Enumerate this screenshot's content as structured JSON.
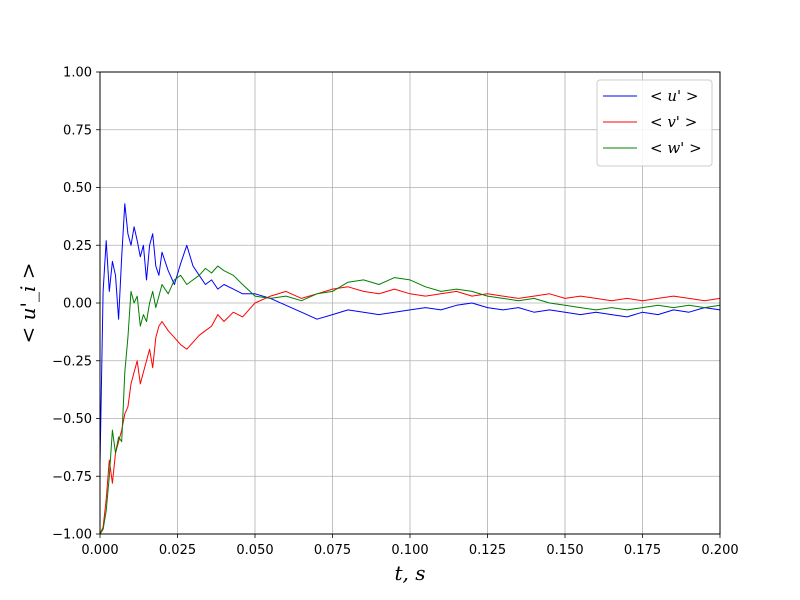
{
  "chart_data": {
    "type": "line",
    "xlabel": "t, s",
    "ylabel": "< u'_i >",
    "xlim": [
      0,
      0.2
    ],
    "ylim": [
      -1.0,
      1.0
    ],
    "grid": true,
    "legend_position": "top-right",
    "x_ticks": [
      0.0,
      0.025,
      0.05,
      0.075,
      0.1,
      0.125,
      0.15,
      0.175,
      0.2
    ],
    "x_tick_labels": [
      "0.000",
      "0.025",
      "0.050",
      "0.075",
      "0.100",
      "0.125",
      "0.150",
      "0.175",
      "0.200"
    ],
    "y_ticks": [
      1.0,
      0.75,
      0.5,
      0.25,
      0.0,
      -0.25,
      -0.5,
      -0.75,
      -1.0
    ],
    "y_tick_labels": [
      "1.00",
      "0.75",
      "0.50",
      "0.25",
      "0.00",
      "−0.25",
      "−0.50",
      "−0.75",
      "−1.00"
    ],
    "series": [
      {
        "name": "< u' >",
        "color": "#0000ff",
        "x": [
          0.0,
          0.001,
          0.002,
          0.003,
          0.004,
          0.005,
          0.006,
          0.007,
          0.008,
          0.009,
          0.01,
          0.011,
          0.012,
          0.013,
          0.014,
          0.015,
          0.016,
          0.017,
          0.018,
          0.019,
          0.02,
          0.022,
          0.024,
          0.026,
          0.028,
          0.03,
          0.032,
          0.034,
          0.036,
          0.038,
          0.04,
          0.043,
          0.046,
          0.05,
          0.055,
          0.06,
          0.065,
          0.07,
          0.075,
          0.08,
          0.085,
          0.09,
          0.095,
          0.1,
          0.105,
          0.11,
          0.115,
          0.12,
          0.125,
          0.13,
          0.135,
          0.14,
          0.145,
          0.15,
          0.155,
          0.16,
          0.165,
          0.17,
          0.175,
          0.18,
          0.185,
          0.19,
          0.195,
          0.2
        ],
        "y": [
          -0.7,
          0.05,
          0.27,
          0.05,
          0.18,
          0.12,
          -0.07,
          0.2,
          0.43,
          0.3,
          0.25,
          0.33,
          0.27,
          0.2,
          0.25,
          0.1,
          0.25,
          0.3,
          0.16,
          0.12,
          0.22,
          0.14,
          0.08,
          0.17,
          0.25,
          0.16,
          0.12,
          0.08,
          0.1,
          0.06,
          0.08,
          0.06,
          0.04,
          0.04,
          0.02,
          -0.01,
          -0.04,
          -0.07,
          -0.05,
          -0.03,
          -0.04,
          -0.05,
          -0.04,
          -0.03,
          -0.02,
          -0.03,
          -0.01,
          0.0,
          -0.02,
          -0.03,
          -0.02,
          -0.04,
          -0.03,
          -0.04,
          -0.05,
          -0.04,
          -0.05,
          -0.06,
          -0.04,
          -0.05,
          -0.03,
          -0.04,
          -0.02,
          -0.03
        ]
      },
      {
        "name": "< v' >",
        "color": "#ff0000",
        "x": [
          0.0,
          0.001,
          0.002,
          0.003,
          0.004,
          0.005,
          0.006,
          0.007,
          0.008,
          0.009,
          0.01,
          0.011,
          0.012,
          0.013,
          0.014,
          0.015,
          0.016,
          0.017,
          0.018,
          0.019,
          0.02,
          0.022,
          0.024,
          0.026,
          0.028,
          0.03,
          0.032,
          0.034,
          0.036,
          0.038,
          0.04,
          0.043,
          0.046,
          0.05,
          0.055,
          0.06,
          0.065,
          0.07,
          0.075,
          0.08,
          0.085,
          0.09,
          0.095,
          0.1,
          0.105,
          0.11,
          0.115,
          0.12,
          0.125,
          0.13,
          0.135,
          0.14,
          0.145,
          0.15,
          0.155,
          0.16,
          0.165,
          0.17,
          0.175,
          0.18,
          0.185,
          0.19,
          0.195,
          0.2
        ],
        "y": [
          -1.0,
          -0.97,
          -0.85,
          -0.68,
          -0.78,
          -0.65,
          -0.6,
          -0.55,
          -0.48,
          -0.45,
          -0.35,
          -0.3,
          -0.25,
          -0.35,
          -0.3,
          -0.25,
          -0.2,
          -0.28,
          -0.15,
          -0.1,
          -0.08,
          -0.12,
          -0.15,
          -0.18,
          -0.2,
          -0.17,
          -0.14,
          -0.12,
          -0.1,
          -0.05,
          -0.08,
          -0.04,
          -0.06,
          0.0,
          0.03,
          0.05,
          0.02,
          0.04,
          0.06,
          0.07,
          0.05,
          0.04,
          0.06,
          0.04,
          0.03,
          0.04,
          0.05,
          0.03,
          0.04,
          0.03,
          0.02,
          0.03,
          0.04,
          0.02,
          0.03,
          0.02,
          0.01,
          0.02,
          0.01,
          0.02,
          0.03,
          0.02,
          0.01,
          0.02
        ]
      },
      {
        "name": "< w' >",
        "color": "#008000",
        "x": [
          0.0,
          0.001,
          0.002,
          0.003,
          0.004,
          0.005,
          0.006,
          0.007,
          0.008,
          0.009,
          0.01,
          0.011,
          0.012,
          0.013,
          0.014,
          0.015,
          0.016,
          0.017,
          0.018,
          0.019,
          0.02,
          0.022,
          0.024,
          0.026,
          0.028,
          0.03,
          0.032,
          0.034,
          0.036,
          0.038,
          0.04,
          0.043,
          0.046,
          0.05,
          0.055,
          0.06,
          0.065,
          0.07,
          0.075,
          0.08,
          0.085,
          0.09,
          0.095,
          0.1,
          0.105,
          0.11,
          0.115,
          0.12,
          0.125,
          0.13,
          0.135,
          0.14,
          0.145,
          0.15,
          0.155,
          0.16,
          0.165,
          0.17,
          0.175,
          0.18,
          0.185,
          0.19,
          0.195,
          0.2
        ],
        "y": [
          -1.0,
          -0.98,
          -0.9,
          -0.75,
          -0.55,
          -0.65,
          -0.58,
          -0.6,
          -0.3,
          -0.15,
          0.05,
          0.0,
          0.03,
          -0.1,
          -0.05,
          -0.08,
          0.0,
          0.05,
          -0.02,
          0.03,
          0.08,
          0.04,
          0.1,
          0.12,
          0.08,
          0.1,
          0.12,
          0.15,
          0.13,
          0.16,
          0.14,
          0.12,
          0.08,
          0.03,
          0.02,
          0.03,
          0.01,
          0.04,
          0.05,
          0.09,
          0.1,
          0.08,
          0.11,
          0.1,
          0.07,
          0.05,
          0.06,
          0.05,
          0.03,
          0.02,
          0.01,
          0.02,
          0.0,
          -0.01,
          -0.02,
          -0.03,
          -0.02,
          -0.03,
          -0.02,
          -0.01,
          -0.02,
          -0.01,
          -0.02,
          -0.01
        ]
      }
    ]
  }
}
